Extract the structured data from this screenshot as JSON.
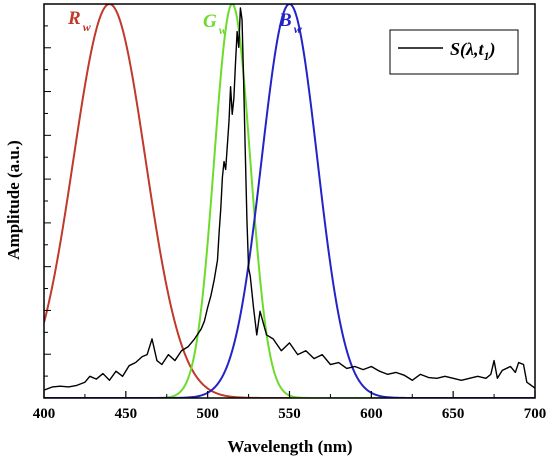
{
  "chart_data": {
    "type": "line",
    "xlabel": "Wavelength (nm)",
    "ylabel": "Amplitude (a.u.)",
    "xlim": [
      400,
      700
    ],
    "ylim": [
      0,
      1
    ],
    "xticks": [
      400,
      450,
      500,
      550,
      600,
      650,
      700
    ],
    "yticks_labeled": false,
    "grid": false,
    "legend": {
      "position": "top-right",
      "entries": [
        "S(λ,t1)"
      ]
    },
    "series": [
      {
        "name": "S(λ,t1)",
        "color": "#000000",
        "x": [
          400,
          405,
          410,
          415,
          420,
          425,
          428,
          432,
          436,
          440,
          444,
          448,
          452,
          456,
          460,
          463,
          466,
          469,
          472,
          476,
          480,
          484,
          488,
          492,
          496,
          498,
          500,
          502,
          504,
          506,
          507,
          508,
          509,
          510,
          511,
          512,
          513,
          514,
          515,
          516,
          517,
          518,
          519,
          520,
          521,
          522,
          523,
          524,
          525,
          526,
          528,
          530,
          532,
          534,
          536,
          540,
          545,
          550,
          555,
          560,
          565,
          570,
          575,
          580,
          585,
          590,
          595,
          600,
          605,
          610,
          615,
          620,
          625,
          630,
          635,
          640,
          645,
          650,
          655,
          660,
          665,
          670,
          673,
          675,
          677,
          680,
          685,
          688,
          690,
          693,
          695,
          700
        ],
        "y": [
          0.02,
          0.028,
          0.03,
          0.028,
          0.032,
          0.04,
          0.055,
          0.048,
          0.062,
          0.045,
          0.068,
          0.055,
          0.082,
          0.09,
          0.105,
          0.11,
          0.15,
          0.095,
          0.085,
          0.11,
          0.095,
          0.12,
          0.13,
          0.15,
          0.175,
          0.195,
          0.23,
          0.26,
          0.3,
          0.35,
          0.42,
          0.48,
          0.56,
          0.6,
          0.58,
          0.64,
          0.7,
          0.79,
          0.72,
          0.76,
          0.85,
          0.93,
          0.89,
          0.99,
          0.96,
          0.8,
          0.62,
          0.45,
          0.33,
          0.31,
          0.23,
          0.16,
          0.22,
          0.19,
          0.16,
          0.15,
          0.12,
          0.14,
          0.11,
          0.12,
          0.1,
          0.11,
          0.085,
          0.09,
          0.075,
          0.08,
          0.072,
          0.08,
          0.068,
          0.06,
          0.065,
          0.058,
          0.045,
          0.06,
          0.052,
          0.05,
          0.055,
          0.05,
          0.045,
          0.05,
          0.055,
          0.05,
          0.06,
          0.095,
          0.05,
          0.07,
          0.08,
          0.065,
          0.09,
          0.085,
          0.04,
          0.025
        ]
      }
    ],
    "reference_curves": [
      {
        "label": "R",
        "subscript": "w",
        "color": "#c0392b",
        "center": 440,
        "width": 22,
        "amplitude": 1.0
      },
      {
        "label": "G",
        "subscript": "w",
        "color": "#6ddb2c",
        "center": 515,
        "width": 11,
        "amplitude": 1.0
      },
      {
        "label": "B",
        "subscript": "w",
        "color": "#2323c8",
        "center": 550,
        "width": 17,
        "amplitude": 1.0
      }
    ]
  }
}
